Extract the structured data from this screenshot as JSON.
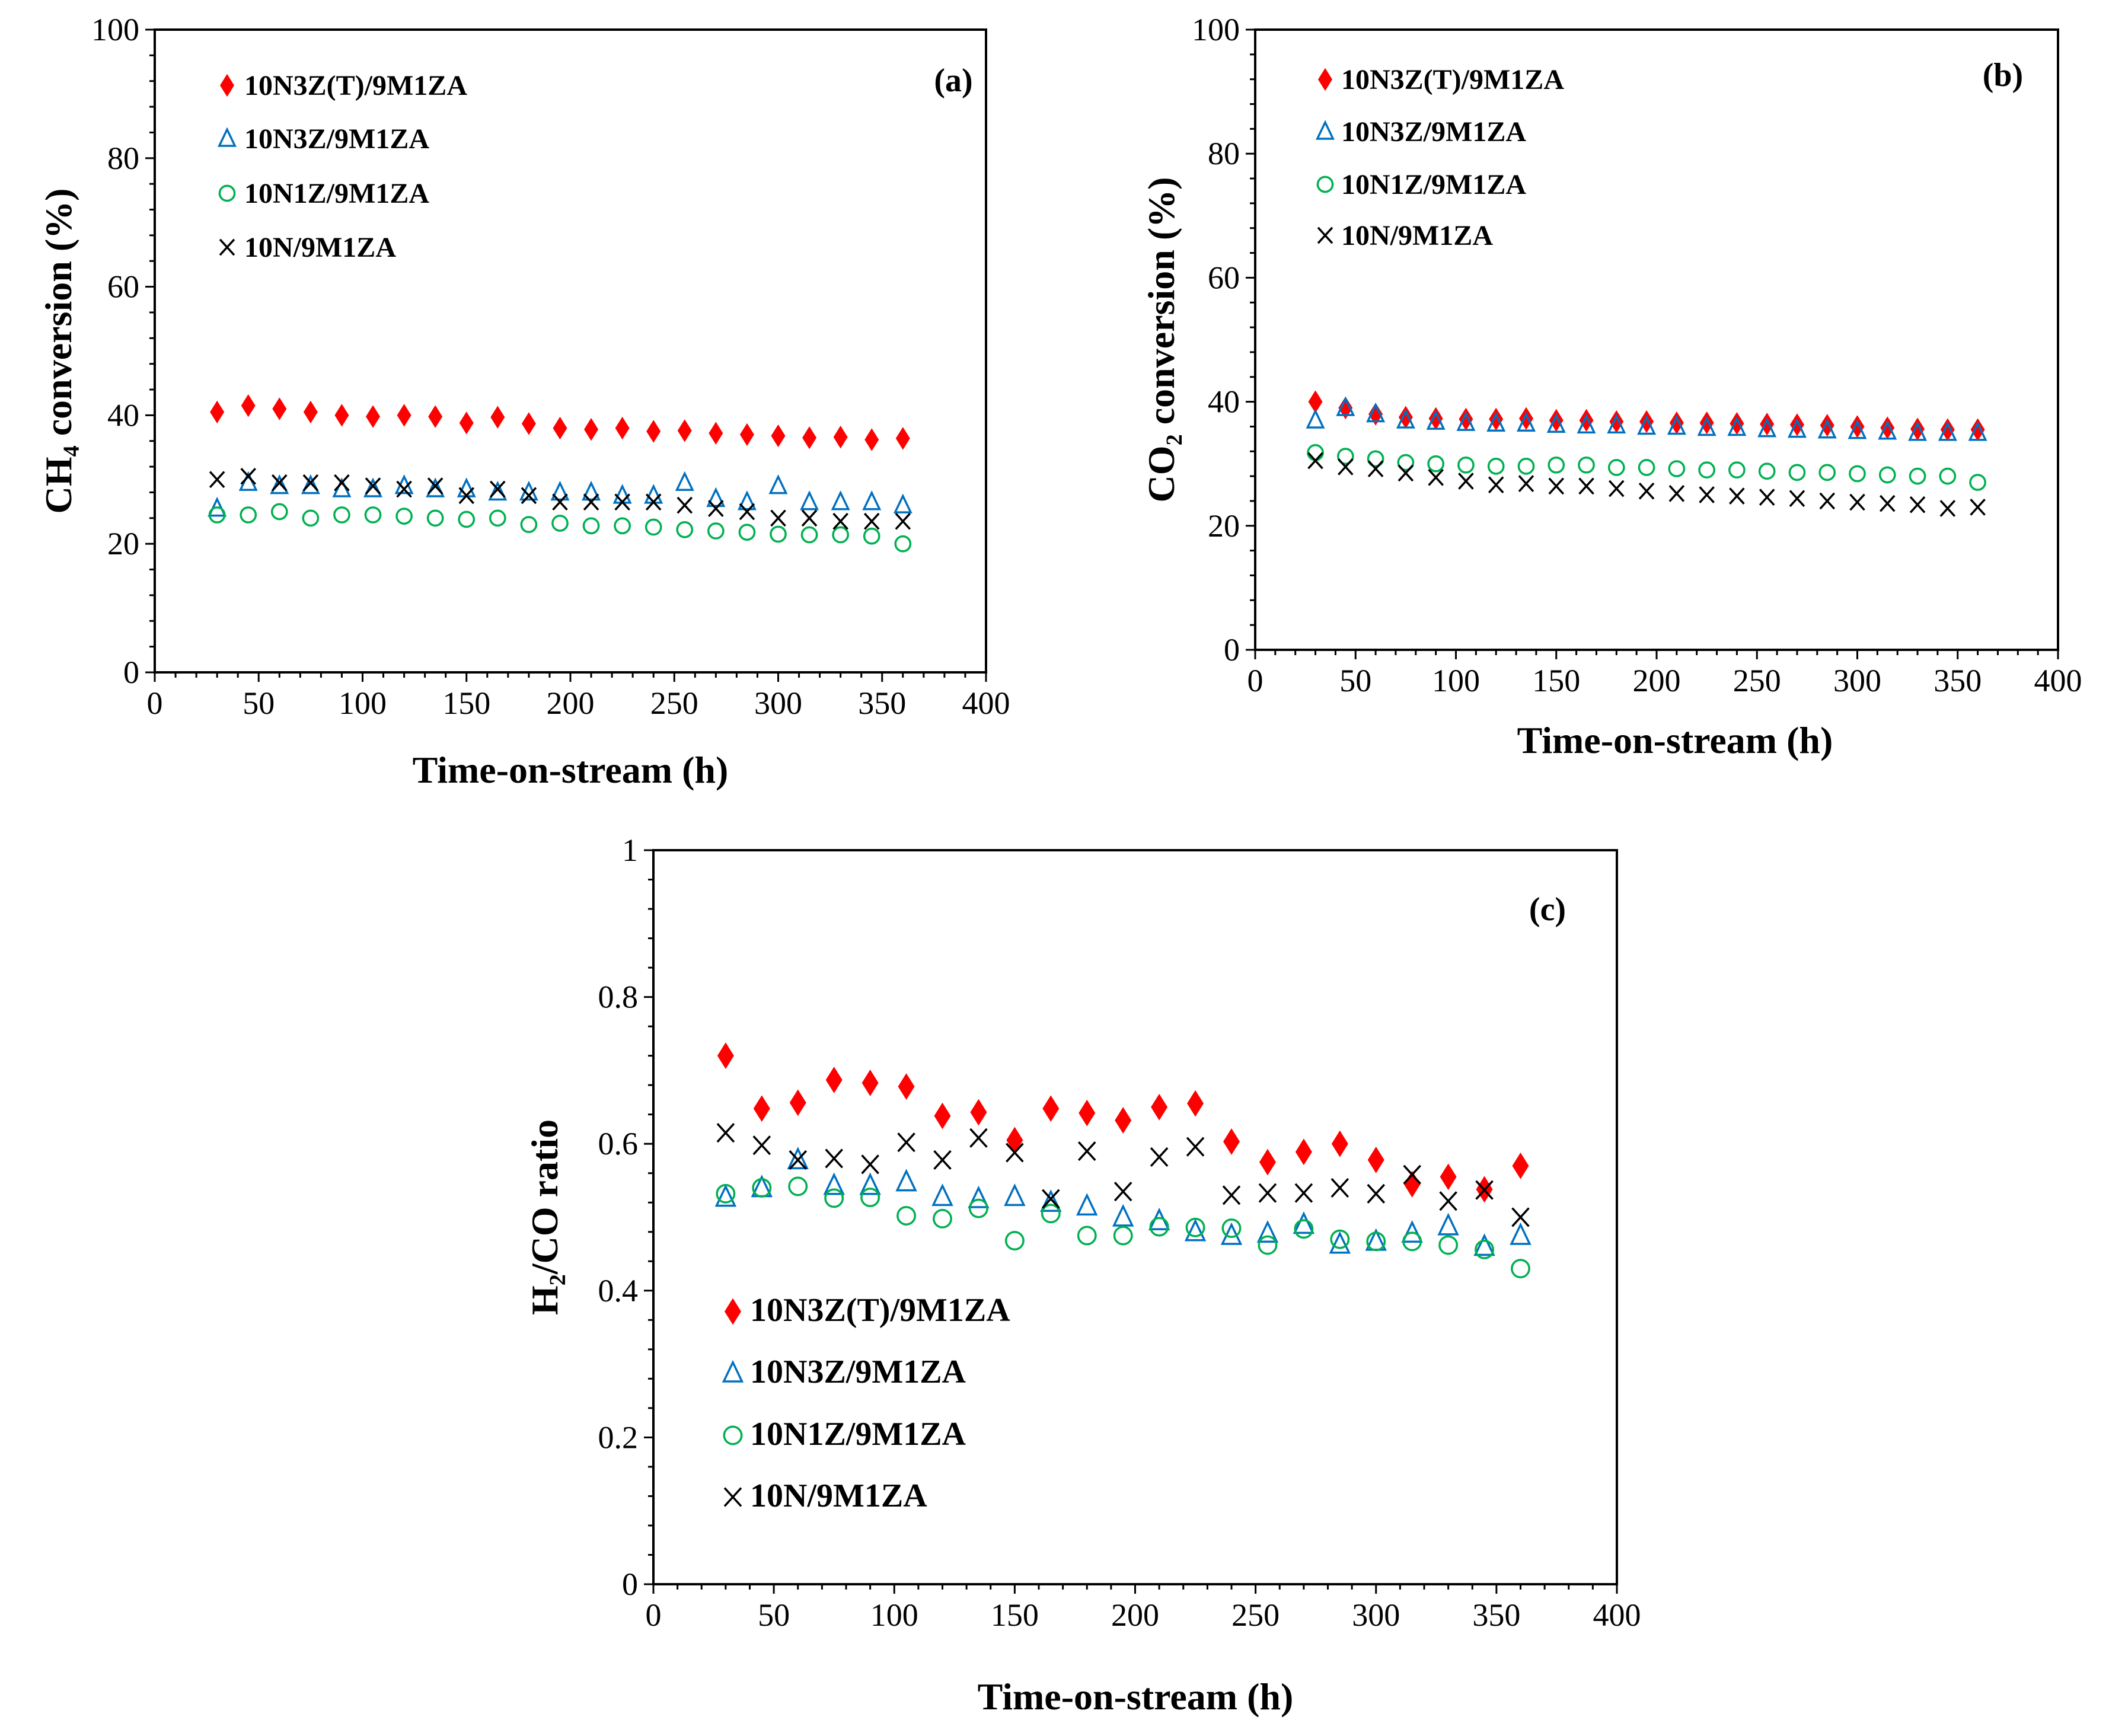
{
  "chart_data": [
    {
      "type": "scatter",
      "panel_label": "(a)",
      "xlabel": "Time-on-stream (h)",
      "ylabel": "CH₄ conversion (%)",
      "xlim": [
        0,
        400
      ],
      "ylim": [
        0,
        100
      ],
      "xticks": [
        0,
        50,
        100,
        150,
        200,
        250,
        300,
        350,
        400
      ],
      "yticks": [
        0,
        20,
        40,
        60,
        80,
        100
      ],
      "grid": false,
      "legend_position": "top-left",
      "x": [
        30,
        45,
        60,
        75,
        90,
        105,
        120,
        135,
        150,
        165,
        180,
        195,
        210,
        225,
        240,
        255,
        270,
        285,
        300,
        315,
        330,
        345,
        360
      ],
      "series": [
        {
          "name": "10N3Z(T)/9M1ZA",
          "marker": "diamond",
          "color": "#ff0000",
          "values": [
            40.5,
            41.5,
            41,
            40.5,
            40,
            39.8,
            40,
            39.8,
            38.8,
            39.7,
            38.7,
            38,
            37.8,
            38,
            37.5,
            37.6,
            37.2,
            37,
            36.8,
            36.5,
            36.6,
            36.2,
            36.4
          ]
        },
        {
          "name": "10N3Z/9M1ZA",
          "marker": "triangle",
          "color": "#0070c0",
          "values": [
            25.5,
            29.5,
            29,
            29,
            28.5,
            28.5,
            29,
            28.5,
            28.5,
            28,
            28,
            28,
            28,
            27.5,
            27.5,
            29.5,
            27,
            26.5,
            29,
            26.5,
            26.5,
            26.5,
            26
          ]
        },
        {
          "name": "10N1Z/9M1ZA",
          "marker": "circle",
          "color": "#00b050",
          "values": [
            24.5,
            24.5,
            25,
            24,
            24.5,
            24.5,
            24.3,
            24,
            23.8,
            24,
            23,
            23.2,
            22.8,
            22.8,
            22.6,
            22.2,
            22,
            21.8,
            21.5,
            21.4,
            21.4,
            21.2,
            20
          ]
        },
        {
          "name": "10N/9M1ZA",
          "marker": "cross",
          "color": "#000000",
          "values": [
            30,
            30.5,
            29.5,
            29.5,
            29.5,
            29,
            28.5,
            29,
            27.5,
            28.5,
            27.5,
            26.5,
            26.5,
            26.5,
            26.5,
            26,
            25.5,
            25,
            24,
            24,
            23.5,
            23.5,
            23.5
          ]
        }
      ]
    },
    {
      "type": "scatter",
      "panel_label": "(b)",
      "xlabel": "Time-on-stream (h)",
      "ylabel": "CO₂ conversion (%)",
      "xlim": [
        0,
        400
      ],
      "ylim": [
        0,
        100
      ],
      "xticks": [
        0,
        50,
        100,
        150,
        200,
        250,
        300,
        350,
        400
      ],
      "yticks": [
        0,
        20,
        40,
        60,
        80,
        100
      ],
      "grid": false,
      "legend_position": "top-left",
      "x": [
        30,
        45,
        60,
        75,
        90,
        105,
        120,
        135,
        150,
        165,
        180,
        195,
        210,
        225,
        240,
        255,
        270,
        285,
        300,
        315,
        330,
        345,
        360
      ],
      "series": [
        {
          "name": "10N3Z(T)/9M1ZA",
          "marker": "diamond",
          "color": "#ff0000",
          "values": [
            40,
            39,
            38,
            37.5,
            37.3,
            37.2,
            37.2,
            37.3,
            37,
            37,
            36.8,
            36.8,
            36.6,
            36.6,
            36.5,
            36.4,
            36.3,
            36.2,
            36,
            35.8,
            35.6,
            35.5,
            35.5
          ]
        },
        {
          "name": "10N3Z/9M1ZA",
          "marker": "triangle",
          "color": "#0070c0",
          "values": [
            37,
            39,
            38,
            37,
            36.8,
            36.6,
            36.5,
            36.5,
            36.3,
            36.2,
            36.2,
            36,
            36,
            35.8,
            35.8,
            35.6,
            35.5,
            35.4,
            35.3,
            35.2,
            35,
            35,
            35
          ]
        },
        {
          "name": "10N1Z/9M1ZA",
          "marker": "circle",
          "color": "#00b050",
          "values": [
            31.8,
            31.2,
            30.8,
            30.2,
            30,
            29.8,
            29.6,
            29.6,
            29.8,
            29.8,
            29.4,
            29.4,
            29.2,
            29,
            29,
            28.8,
            28.6,
            28.6,
            28.4,
            28.2,
            28,
            28,
            27
          ]
        },
        {
          "name": "10N/9M1ZA",
          "marker": "cross",
          "color": "#000000",
          "values": [
            30.5,
            29.5,
            29.2,
            28.5,
            27.8,
            27.2,
            26.6,
            26.8,
            26.4,
            26.4,
            26,
            25.6,
            25.2,
            25,
            24.8,
            24.6,
            24.4,
            24,
            23.8,
            23.6,
            23.4,
            22.8,
            23
          ]
        }
      ]
    },
    {
      "type": "scatter",
      "panel_label": "(c)",
      "xlabel": "Time-on-stream (h)",
      "ylabel": "H₂/CO ratio",
      "xlim": [
        0,
        400
      ],
      "ylim": [
        0,
        1
      ],
      "xticks": [
        0,
        50,
        100,
        150,
        200,
        250,
        300,
        350,
        400
      ],
      "yticks": [
        0,
        0.2,
        0.4,
        0.6,
        0.8,
        1
      ],
      "grid": false,
      "legend_position": "bottom-left",
      "x": [
        30,
        45,
        60,
        75,
        90,
        105,
        120,
        135,
        150,
        165,
        180,
        195,
        210,
        225,
        240,
        255,
        270,
        285,
        300,
        315,
        330,
        345,
        360
      ],
      "series": [
        {
          "name": "10N3Z(T)/9M1ZA",
          "marker": "diamond",
          "color": "#ff0000",
          "values": [
            0.72,
            0.648,
            0.656,
            0.687,
            0.683,
            0.678,
            0.638,
            0.643,
            0.605,
            0.648,
            0.642,
            0.632,
            0.65,
            0.655,
            0.603,
            0.575,
            0.589,
            0.6,
            0.578,
            0.545,
            0.555,
            0.538,
            0.57
          ]
        },
        {
          "name": "10N3Z/9M1ZA",
          "marker": "triangle",
          "color": "#0070c0",
          "values": [
            0.527,
            0.54,
            0.578,
            0.543,
            0.543,
            0.548,
            0.528,
            0.525,
            0.528,
            0.52,
            0.515,
            0.5,
            0.495,
            0.48,
            0.475,
            0.478,
            0.49,
            0.463,
            0.467,
            0.478,
            0.488,
            0.46,
            0.475
          ]
        },
        {
          "name": "10N1Z/9M1ZA",
          "marker": "circle",
          "color": "#00b050",
          "values": [
            0.532,
            0.54,
            0.542,
            0.526,
            0.527,
            0.502,
            0.498,
            0.512,
            0.468,
            0.505,
            0.475,
            0.475,
            0.487,
            0.486,
            0.485,
            0.462,
            0.484,
            0.47,
            0.467,
            0.467,
            0.462,
            0.456,
            0.43
          ]
        },
        {
          "name": "10N/9M1ZA",
          "marker": "cross",
          "color": "#000000",
          "values": [
            0.615,
            0.598,
            0.578,
            0.58,
            0.572,
            0.602,
            0.578,
            0.608,
            0.588,
            0.525,
            0.59,
            0.535,
            0.582,
            0.596,
            0.53,
            0.533,
            0.533,
            0.54,
            0.532,
            0.558,
            0.522,
            0.537,
            0.5
          ]
        }
      ]
    }
  ]
}
